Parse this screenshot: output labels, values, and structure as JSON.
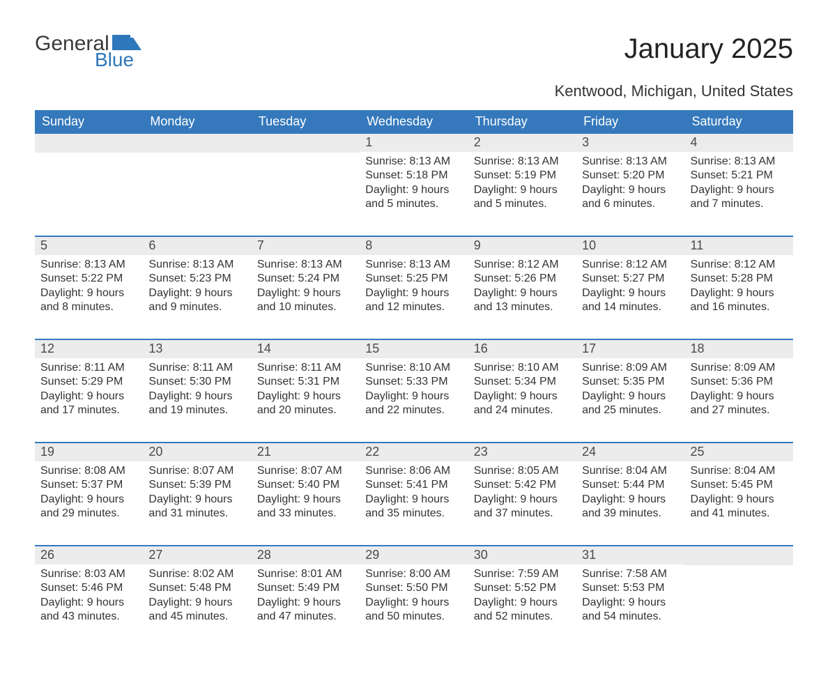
{
  "logo": {
    "text_general": "General",
    "text_blue": "Blue",
    "flag_color": "#2f77bb"
  },
  "title": "January 2025",
  "location": "Kentwood, Michigan, United States",
  "colors": {
    "header_bg": "#3579bc",
    "header_text": "#ffffff",
    "row_divider": "#3579bc",
    "daynum_bg": "#ececec",
    "daynum_text": "#4a4a4a",
    "body_text": "#333333",
    "page_bg": "#ffffff"
  },
  "typography": {
    "title_fontsize": 40,
    "location_fontsize": 22,
    "weekday_fontsize": 18,
    "daynum_fontsize": 18,
    "body_fontsize": 16
  },
  "weekdays": [
    "Sunday",
    "Monday",
    "Tuesday",
    "Wednesday",
    "Thursday",
    "Friday",
    "Saturday"
  ],
  "labels": {
    "sunrise": "Sunrise:",
    "sunset": "Sunset:",
    "daylight": "Daylight:"
  },
  "weeks": [
    [
      {
        "day": null
      },
      {
        "day": null
      },
      {
        "day": null
      },
      {
        "day": 1,
        "sunrise": "8:13 AM",
        "sunset": "5:18 PM",
        "daylight": "9 hours and 5 minutes."
      },
      {
        "day": 2,
        "sunrise": "8:13 AM",
        "sunset": "5:19 PM",
        "daylight": "9 hours and 5 minutes."
      },
      {
        "day": 3,
        "sunrise": "8:13 AM",
        "sunset": "5:20 PM",
        "daylight": "9 hours and 6 minutes."
      },
      {
        "day": 4,
        "sunrise": "8:13 AM",
        "sunset": "5:21 PM",
        "daylight": "9 hours and 7 minutes."
      }
    ],
    [
      {
        "day": 5,
        "sunrise": "8:13 AM",
        "sunset": "5:22 PM",
        "daylight": "9 hours and 8 minutes."
      },
      {
        "day": 6,
        "sunrise": "8:13 AM",
        "sunset": "5:23 PM",
        "daylight": "9 hours and 9 minutes."
      },
      {
        "day": 7,
        "sunrise": "8:13 AM",
        "sunset": "5:24 PM",
        "daylight": "9 hours and 10 minutes."
      },
      {
        "day": 8,
        "sunrise": "8:13 AM",
        "sunset": "5:25 PM",
        "daylight": "9 hours and 12 minutes."
      },
      {
        "day": 9,
        "sunrise": "8:12 AM",
        "sunset": "5:26 PM",
        "daylight": "9 hours and 13 minutes."
      },
      {
        "day": 10,
        "sunrise": "8:12 AM",
        "sunset": "5:27 PM",
        "daylight": "9 hours and 14 minutes."
      },
      {
        "day": 11,
        "sunrise": "8:12 AM",
        "sunset": "5:28 PM",
        "daylight": "9 hours and 16 minutes."
      }
    ],
    [
      {
        "day": 12,
        "sunrise": "8:11 AM",
        "sunset": "5:29 PM",
        "daylight": "9 hours and 17 minutes."
      },
      {
        "day": 13,
        "sunrise": "8:11 AM",
        "sunset": "5:30 PM",
        "daylight": "9 hours and 19 minutes."
      },
      {
        "day": 14,
        "sunrise": "8:11 AM",
        "sunset": "5:31 PM",
        "daylight": "9 hours and 20 minutes."
      },
      {
        "day": 15,
        "sunrise": "8:10 AM",
        "sunset": "5:33 PM",
        "daylight": "9 hours and 22 minutes."
      },
      {
        "day": 16,
        "sunrise": "8:10 AM",
        "sunset": "5:34 PM",
        "daylight": "9 hours and 24 minutes."
      },
      {
        "day": 17,
        "sunrise": "8:09 AM",
        "sunset": "5:35 PM",
        "daylight": "9 hours and 25 minutes."
      },
      {
        "day": 18,
        "sunrise": "8:09 AM",
        "sunset": "5:36 PM",
        "daylight": "9 hours and 27 minutes."
      }
    ],
    [
      {
        "day": 19,
        "sunrise": "8:08 AM",
        "sunset": "5:37 PM",
        "daylight": "9 hours and 29 minutes."
      },
      {
        "day": 20,
        "sunrise": "8:07 AM",
        "sunset": "5:39 PM",
        "daylight": "9 hours and 31 minutes."
      },
      {
        "day": 21,
        "sunrise": "8:07 AM",
        "sunset": "5:40 PM",
        "daylight": "9 hours and 33 minutes."
      },
      {
        "day": 22,
        "sunrise": "8:06 AM",
        "sunset": "5:41 PM",
        "daylight": "9 hours and 35 minutes."
      },
      {
        "day": 23,
        "sunrise": "8:05 AM",
        "sunset": "5:42 PM",
        "daylight": "9 hours and 37 minutes."
      },
      {
        "day": 24,
        "sunrise": "8:04 AM",
        "sunset": "5:44 PM",
        "daylight": "9 hours and 39 minutes."
      },
      {
        "day": 25,
        "sunrise": "8:04 AM",
        "sunset": "5:45 PM",
        "daylight": "9 hours and 41 minutes."
      }
    ],
    [
      {
        "day": 26,
        "sunrise": "8:03 AM",
        "sunset": "5:46 PM",
        "daylight": "9 hours and 43 minutes."
      },
      {
        "day": 27,
        "sunrise": "8:02 AM",
        "sunset": "5:48 PM",
        "daylight": "9 hours and 45 minutes."
      },
      {
        "day": 28,
        "sunrise": "8:01 AM",
        "sunset": "5:49 PM",
        "daylight": "9 hours and 47 minutes."
      },
      {
        "day": 29,
        "sunrise": "8:00 AM",
        "sunset": "5:50 PM",
        "daylight": "9 hours and 50 minutes."
      },
      {
        "day": 30,
        "sunrise": "7:59 AM",
        "sunset": "5:52 PM",
        "daylight": "9 hours and 52 minutes."
      },
      {
        "day": 31,
        "sunrise": "7:58 AM",
        "sunset": "5:53 PM",
        "daylight": "9 hours and 54 minutes."
      },
      {
        "day": null
      }
    ]
  ]
}
